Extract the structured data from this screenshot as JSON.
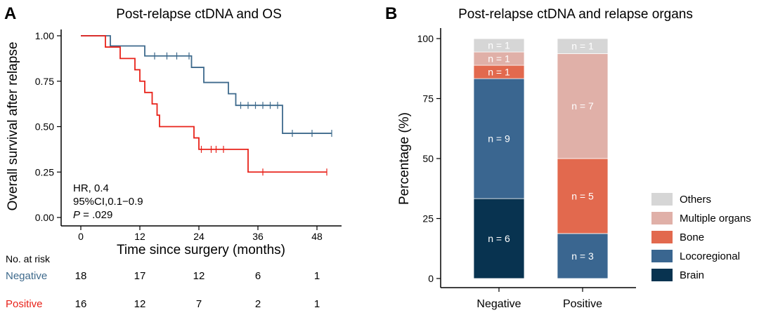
{
  "colors": {
    "negative": "#3e6a8c",
    "positive": "#e8221a",
    "axis": "#000000",
    "others": "#d6d6d6",
    "multiple_organs": "#e0b0a8",
    "bone": "#e2694e",
    "locoregional": "#3a6690",
    "brain": "#083350"
  },
  "chart_data": [
    {
      "type": "line",
      "panel_label": "A",
      "title": "Post-relapse ctDNA and OS",
      "xlabel": "Time since surgery (months)",
      "ylabel": "Overall survival after relapse",
      "xlim": [
        -4,
        53
      ],
      "ylim": [
        0,
        1
      ],
      "xticks": [
        0,
        12,
        24,
        36,
        48
      ],
      "yticks": [
        0,
        0.25,
        0.5,
        0.75,
        1
      ],
      "ytick_labels": [
        "0.00",
        "0.25",
        "0.50",
        "0.75",
        "1.00"
      ],
      "series": [
        {
          "name": "Negative",
          "color_key": "negative",
          "steps": [
            [
              0,
              1.0
            ],
            [
              6,
              0.944
            ],
            [
              13,
              0.889
            ],
            [
              22.5,
              0.826
            ],
            [
              25,
              0.743
            ],
            [
              30,
              0.681
            ],
            [
              31.5,
              0.617
            ],
            [
              41,
              0.463
            ],
            [
              51,
              0.463
            ]
          ],
          "censored": [
            [
              15,
              0.889
            ],
            [
              17.5,
              0.889
            ],
            [
              19.5,
              0.889
            ],
            [
              22,
              0.889
            ],
            [
              32.5,
              0.617
            ],
            [
              34,
              0.617
            ],
            [
              35.5,
              0.617
            ],
            [
              37,
              0.617
            ],
            [
              38.5,
              0.617
            ],
            [
              40,
              0.617
            ],
            [
              43,
              0.463
            ],
            [
              47,
              0.463
            ],
            [
              51,
              0.463
            ]
          ]
        },
        {
          "name": "Positive",
          "color_key": "positive",
          "steps": [
            [
              0,
              1.0
            ],
            [
              5,
              0.938
            ],
            [
              8,
              0.875
            ],
            [
              11,
              0.813
            ],
            [
              12,
              0.75
            ],
            [
              13,
              0.688
            ],
            [
              14.5,
              0.625
            ],
            [
              15.5,
              0.563
            ],
            [
              16,
              0.5
            ],
            [
              23,
              0.438
            ],
            [
              24,
              0.375
            ],
            [
              34,
              0.25
            ],
            [
              50,
              0.25
            ]
          ],
          "censored": [
            [
              24.5,
              0.375
            ],
            [
              26.5,
              0.375
            ],
            [
              27.5,
              0.375
            ],
            [
              29,
              0.375
            ],
            [
              37,
              0.25
            ],
            [
              50,
              0.25
            ]
          ]
        }
      ],
      "annotations": {
        "hr": "HR, 0.4",
        "ci": "95%CI,0.1−0.9",
        "p_label": "P",
        "p_value": " = .029"
      },
      "risk_table": {
        "header": "No. at risk",
        "times": [
          0,
          12,
          24,
          36,
          48
        ],
        "rows": [
          {
            "label": "Negative",
            "color_key": "negative",
            "values": [
              "18",
              "17",
              "12",
              "6",
              "1"
            ]
          },
          {
            "label": "Positive",
            "color_key": "positive",
            "values": [
              "16",
              "12",
              "7",
              "2",
              "1"
            ]
          }
        ]
      }
    },
    {
      "type": "bar",
      "stacked": true,
      "panel_label": "B",
      "title": "Post-relapse ctDNA and relapse organs",
      "ylabel": "Percentage (%)",
      "ylim": [
        0,
        100
      ],
      "yticks": [
        0,
        25,
        50,
        75,
        100
      ],
      "ytick_labels": [
        "0",
        "25",
        "50",
        "75",
        "100"
      ],
      "categories": [
        "Negative",
        "Positive"
      ],
      "series": [
        {
          "name": "Brain",
          "color_key": "brain",
          "values": [
            33.3,
            0
          ],
          "labels": [
            "n = 6",
            ""
          ]
        },
        {
          "name": "Locoregional",
          "color_key": "locoregional",
          "values": [
            50.0,
            18.75
          ],
          "labels": [
            "n = 9",
            "n = 3"
          ]
        },
        {
          "name": "Bone",
          "color_key": "bone",
          "values": [
            5.56,
            31.25
          ],
          "labels": [
            "n = 1",
            "n = 5"
          ]
        },
        {
          "name": "Multiple organs",
          "color_key": "multiple_organs",
          "values": [
            5.56,
            43.75
          ],
          "labels": [
            "n = 1",
            "n = 7"
          ]
        },
        {
          "name": "Others",
          "color_key": "others",
          "values": [
            5.56,
            6.25
          ],
          "labels": [
            "n = 1",
            "n = 1"
          ]
        }
      ],
      "legend": [
        "Others",
        "Multiple organs",
        "Bone",
        "Locoregional",
        "Brain"
      ],
      "legend_keys": [
        "others",
        "multiple_organs",
        "bone",
        "locoregional",
        "brain"
      ],
      "legend_position": "right"
    }
  ]
}
